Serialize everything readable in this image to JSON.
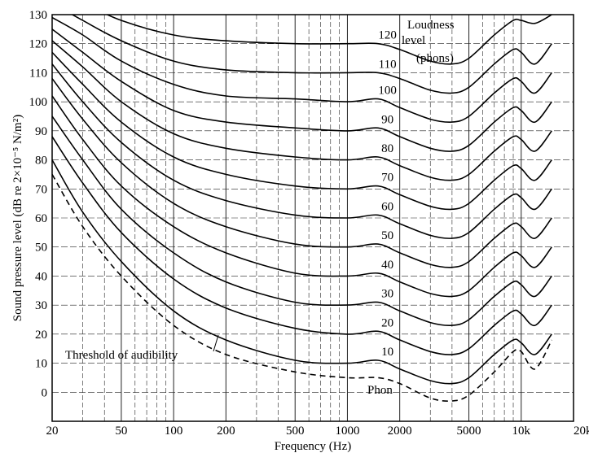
{
  "chart_data": {
    "type": "line",
    "xlabel": "Frequency (Hz)",
    "ylabel": "Sound pressure level (dB re 2×10⁻⁵ N/m²)",
    "xscale": "log",
    "xlim": [
      20,
      20000
    ],
    "ylim": [
      -10,
      130
    ],
    "grid": true,
    "x_ticks": [
      {
        "v": 20,
        "label": "20"
      },
      {
        "v": 50,
        "label": "50"
      },
      {
        "v": 100,
        "label": "100"
      },
      {
        "v": 200,
        "label": "200"
      },
      {
        "v": 500,
        "label": "500"
      },
      {
        "v": 1000,
        "label": "1000"
      },
      {
        "v": 2000,
        "label": "2000"
      },
      {
        "v": 5000,
        "label": "5000"
      },
      {
        "v": 10000,
        "label": "10k"
      },
      {
        "v": 20000,
        "label": "20k"
      }
    ],
    "y_ticks": [
      0,
      10,
      20,
      30,
      40,
      50,
      60,
      70,
      80,
      90,
      100,
      110,
      120,
      130
    ],
    "legend_title": [
      "Loudness",
      "level",
      "(phons)"
    ],
    "annotations": {
      "threshold": "Threshold of audibility",
      "phon": "Phon"
    },
    "x": [
      20,
      30,
      50,
      100,
      200,
      500,
      1000,
      1500,
      2000,
      3000,
      4000,
      5000,
      7000,
      9000,
      10000,
      12000,
      15000
    ],
    "series": [
      {
        "name": "10",
        "values": [
          80,
          62,
          45,
          28,
          18,
          11,
          10,
          11,
          8,
          4,
          3,
          5,
          13,
          18,
          17,
          13,
          20
        ]
      },
      {
        "name": "20",
        "values": [
          88,
          72,
          55,
          39,
          29,
          22,
          20,
          21,
          18,
          14,
          13,
          15,
          23,
          28,
          27,
          23,
          30
        ]
      },
      {
        "name": "30",
        "values": [
          95,
          80,
          63,
          48,
          38,
          31,
          30,
          31,
          28,
          24,
          23,
          25,
          33,
          38,
          37,
          33,
          40
        ]
      },
      {
        "name": "40",
        "values": [
          102,
          87,
          71,
          57,
          48,
          41,
          40,
          41,
          38,
          34,
          33,
          35,
          43,
          48,
          47,
          43,
          50
        ]
      },
      {
        "name": "50",
        "values": [
          108,
          94,
          79,
          65,
          57,
          51,
          50,
          51,
          48,
          44,
          43,
          45,
          53,
          58,
          57,
          53,
          60
        ]
      },
      {
        "name": "60",
        "values": [
          113,
          100,
          86,
          73,
          66,
          61,
          60,
          61,
          58,
          54,
          53,
          55,
          63,
          68,
          67,
          63,
          70
        ]
      },
      {
        "name": "70",
        "values": [
          117,
          106,
          93,
          81,
          75,
          71,
          70,
          71,
          68,
          64,
          63,
          65,
          73,
          78,
          77,
          73,
          80
        ]
      },
      {
        "name": "80",
        "values": [
          121,
          112,
          100,
          89,
          84,
          81,
          80,
          81,
          78,
          74,
          73,
          75,
          83,
          88,
          87,
          83,
          90
        ]
      },
      {
        "name": "90",
        "values": [
          125,
          117,
          107,
          97,
          93,
          91,
          90,
          91,
          88,
          84,
          83,
          85,
          93,
          98,
          97,
          93,
          100
        ]
      },
      {
        "name": "100",
        "values": [
          129,
          123,
          114,
          106,
          102,
          101,
          100,
          101,
          98,
          94,
          93,
          95,
          103,
          108,
          107,
          103,
          110
        ]
      },
      {
        "name": "110",
        "values": [
          134,
          128,
          121,
          114,
          111,
          110,
          110,
          110,
          108,
          104,
          103,
          105,
          113,
          118,
          117,
          113,
          120
        ]
      },
      {
        "name": "120",
        "values": [
          138,
          134,
          128,
          123,
          121,
          120,
          120,
          120,
          118,
          114,
          113,
          115,
          123,
          128,
          128,
          127,
          130
        ]
      }
    ],
    "threshold_values": [
      75,
      57,
      40,
      23,
      13,
      7,
      5,
      5,
      3,
      -2,
      -3,
      -1,
      7,
      14,
      14,
      8,
      18
    ]
  }
}
